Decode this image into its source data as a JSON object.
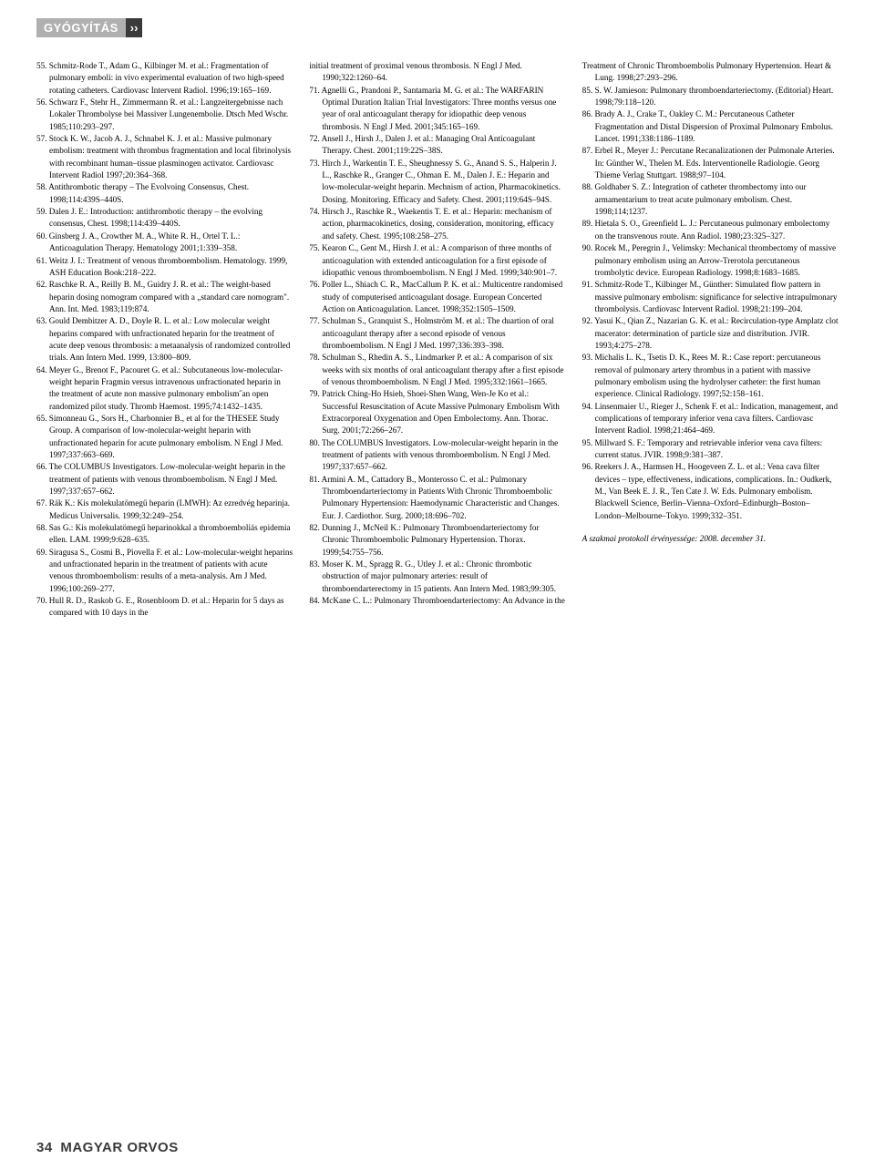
{
  "header": {
    "label": "GYÓGYÍTÁS",
    "chevron": "››"
  },
  "footer": {
    "page": "34",
    "title": "MAGYAR ORVOS"
  },
  "refs_col1": [
    "55. Schmitz-Rode T., Adam G., Kilbinger M. et al.: Fragmentation of pulmonary emboli: in vivo experimental evaluation of two high-speed rotating catheters. Cardiovasc Intervent Radiol. 1996;19:165–169.",
    "56. Schwarz F., Stehr H., Zimmermann R. et al.: Langzeitergebnisse nach Lokaler Thrombolyse bei Massiver Lungenembolie. Dtsch Med Wschr. 1985;110:293–297.",
    "57. Stock K. W., Jacob A. J., Schnabel K. J. et al.: Massive pulmonary embolism: treatment with thrombus fragmentation and local fibrinolysis with recombinant human–tissue plasminogen activator. Cardiovasc Intervent Radiol 1997;20:364–368.",
    "58. Antithrombotic therapy – The Evolvoing Consensus, Chest. 1998;114:439S–440S.",
    "59. Dalen J. E.: Introduction: antithrombotic therapy – the evolving consensus, Chest. 1998;114:439–440S.",
    "60. Ginsberg J. A., Crowther M. A., White R. H., Ortel T. L.: Anticoagulation Therapy. Hematology 2001;1:339–358.",
    "61. Weitz J. I.: Treatment of venous thromboembolism. Hematology. 1999, ASH Education Book:218–222.",
    "62. Raschke R. A., Reilly B. M., Guidry J. R. et al.: The weight-based heparin dosing nomogram compared with a „standard care nomogram\". Ann. Int. Med. 1983;119:874.",
    "63. Gould Dembitzer A. D., Doyle R. L. et al.: Low molecular weight heparins compared with unfractionated heparin for the treatment of acute deep venous thrombosis: a metaanalysis of randomized controlled trials. Ann Intern Med. 1999, 13:800–809.",
    "64. Meyer G., Brenot F., Pacouret G. et al.: Subcutaneous low-molecular-weight heparin Fragmin versus intravenous unfractionated heparin in the treatment of acute non massive pulmonary embolism˝an open randomized pilot study. Thromb Haemost. 1995;74:1432–1435.",
    "65. Simonneau G., Sors H., Charbonnier B., et al for the THESEE Study Group. A comparison of low-molecular-weight heparin with unfractionated heparin for acute pulmonary embolism. N Engl J Med. 1997;337:663–669.",
    "66. The COLUMBUS Investigators. Low-molecular-weight heparin in the treatment of patients with venous thromboembolism. N Engl J Med. 1997;337:657–662.",
    "67. Rák K.: Kis molekulatömegű heparin (LMWH): Az ezredvég heparinja. Medicus Universalis. 1999;32:249–254.",
    "68. Sas G.: Kis molekulatömegű heparinokkal a thromboemboliás epidemia ellen. LAM. 1999;9:628–635.",
    "69. Siragusa S., Cosmi B., Piovella F. et al.: Low-molecular-weight heparins and unfractionated heparin in the treatment of patients with acute venous thromboembolism: results of a meta-analysis. Am J Med. 1996;100:269–277.",
    "70. Hull R. D., Raskob G. E., Rosenbloom D. et al.: Heparin for 5 days as compared with 10 days in the"
  ],
  "refs_col2": [
    "initial treatment of proximal venous thrombosis. N Engl J Med. 1990;322:1260–64.",
    "71. Agnelli G., Prandoni P., Santamaria M. G. et al.: The WARFARIN Optimal Duration Italian Trial Investigators: Three months versus one year of oral anticoagulant therapy for idiopathic deep venous thrombosis. N Engl J Med. 2001;345:165–169.",
    "72. Ansell J., Hirsh J., Dalen J. et al.: Managing Oral Anticoagulant Therapy. Chest. 2001;119:22S–38S.",
    "73. Hirch J., Warkentin T. E., Sheughnessy S. G., Anand S. S., Halperin J. L., Raschke R., Granger C., Ohman E. M., Dalen J. E.: Heparin and low-molecular-weight heparin. Mechnism of action, Pharmacokinetics. Dosing. Monitoring. Efficacy and Safety. Chest. 2001;119:64S–94S.",
    "74. Hirsch J., Raschke R., Waekentis T. E. et al.: Heparin: mechanism of action, pharmacokinetics, dosing, consideration, monitoring, efficacy and safety. Chest. 1995;108:258–275.",
    "75. Kearon C., Gent M., Hirsh J. et al.: A comparison of three months of anticoagulation with extended anticoagulation for a first episode of idiopathic venous thromboembolism. N Engl J Med. 1999;340:901–7.",
    "76. Poller L., Shiach C. R., MacCallum P. K. et al.: Multicentre randomised study of computerised anticoagulant dosage. European Concerted Action on Anticoagulation. Lancet. 1998;352:1505–1509.",
    "77. Schulman S., Granquist S., Holmström M. et al.: The duartion of oral anticoagulant therapy after a second episode of venous thromboembolism. N Engl J Med. 1997;336:393–398.",
    "78. Schulman S., Rhedin A. S., Lindmarker P. et al.: A comparison of six weeks with six months of oral anticoagulant therapy after a first episode of venous thromboembolism. N Engl J Med. 1995;332:1661–1665.",
    "79. Patrick Ching-Ho Hsieh, Shoei-Shen Wang, Wen-Je Ko et al.: Successful Resuscitation of Acute Massive Pulmonary Embolism With Extracorporeal Oxygenation and Open Embolectomy. Ann. Thorac. Surg. 2001;72:266–267.",
    "80. The COLUMBUS Investigators. Low-molecular-weight heparin in the treatment of patients with venous thromboembolism. N Engl J Med. 1997;337:657–662.",
    "81. Armini A. M., Cattadory B., Monterosso C. et al.: Pulmonary Thromboendarteriectomy in Patients With Chronic Thromboembolic Pulmonary Hypertension: Haemodynamic Characteristic and Changes. Eur. J. Cardiothor. Surg. 2000;18:696–702.",
    "82. Dunning J., McNeil K.: Pulmonary Thromboendarteriectomy for Chronic Thromboembolic Pulmonary Hypertension. Thorax. 1999;54:755–756.",
    "83. Moser K. M., Spragg R. G., Utley J. et al.: Chronic thrombotic obstruction of major pulmonary arteries: result of thromboendarterectomy in 15 patients. Ann Intern Med. 1983;99:305.",
    "84. McKane C. L.: Pulmonary Thromboendarteriectomy: An Advance in the"
  ],
  "refs_col3": [
    "Treatment of Chronic Thromboembolis Pulmonary Hypertension. Heart & Lung. 1998;27:293–296.",
    "85. S. W. Jamieson: Pulmonary thromboendarteriectomy. (Editorial) Heart. 1998;79:118–120.",
    "86. Brady A. J., Crake T., Oakley C. M.: Percutaneous Catheter Fragmentation and Distal Dispersion of Proximal Pulmonary Embolus. Lancet. 1991;338:1186–1189.",
    "87. Erbel R., Meyer J.: Percutane Recanalizationen der Pulmonale Arteries. In: Günther W., Thelen M. Eds. Interventionelle Radiologie. Georg Thieme Verlag Stuttgart. 1988;97–104.",
    "88. Goldhaber S. Z.: Integration of catheter thrombectomy into our armamentarium to treat acute pulmonary embolism. Chest. 1998;114;1237.",
    "89. Hietala S. O., Greenfield L. J.: Percutaneous pulmonary embolectomy on the transvenous route. Ann Radiol. 1980;23:325–327.",
    "90. Rocek M., Peregrin J., Velimsky: Mechanical thrombectomy of massive pulmonary embolism using an Arrow-Trerotola percutaneous trombolytic device. European Radiology. 1998;8:1683–1685.",
    "91. Schmitz-Rode T., Kilbinger M., Günther: Simulated flow pattern in massive pulmonary embolism: significance for selective intrapulmonary thrombolysis. Cardiovasc Intervent Radiol. 1998;21:199–204.",
    "92. Yasui K., Qian Z., Nazarian G. K. et al.: Recirculation-type Amplatz clot macerator: determination of particle size and distribution. JVIR. 1993;4:275–278.",
    "93. Michalis L. K., Tsetis D. K., Rees M. R.: Case report: percutaneous removal of pulmonary artery thrombus in a patient with massive pulmonary embolism using the hydrolyser catheter: the first human experience. Clinical Radiology. 1997;52:158–161.",
    "94. Linsenmaier U., Rieger J., Schenk F. et al.: Indication, management, and complications of temporary inferior vena cava filters. Cardiovasc Intervent Radiol. 1998;21:464–469.",
    "95. Millward S. F.: Temporary and retrievable inferior vena cava filters: current status. JVIR. 1998;9:381–387.",
    "96. Reekers J. A., Harmsen H., Hoogeveen Z. L. et al.: Vena cava filter devices – type, effectiveness, indications, complications. In.: Oudkerk, M., Van Beek E. J. R., Ten Cate J. W. Eds. Pulmonary embolism. Blackwell Science, Berlin–Vienna–Oxford–Edinburgh–Boston–London–Melbourne–Tokyo. 1999;332–351."
  ],
  "validity": "A szakmai protokoll érvényessége: 2008. december 31."
}
